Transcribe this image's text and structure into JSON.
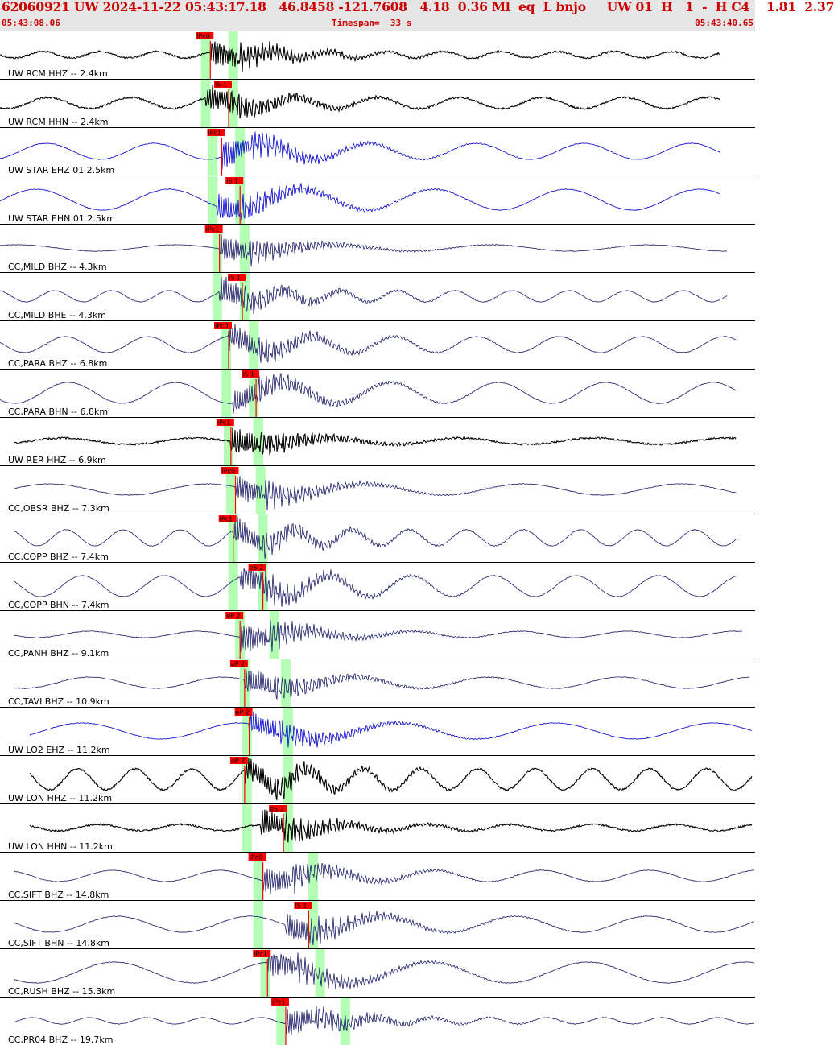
{
  "header": {
    "summary": "62060921 UW 2024-11-22 05:43:17.18   46.8458 -121.7608   4.18  0.36 Ml  eq  L bnjo     UW 01  H   1  -  H C4    1.81  2.37",
    "start_time": "05:43:08.06",
    "timespan": "Timespan=  33 s",
    "end_time": "05:43:40.65"
  },
  "colors": {
    "header_text": "#cc0000",
    "header_bg": "#e6e6e6",
    "pick": "#ff0000",
    "window": "#b3ffb3",
    "trace_blue": "#0000cc",
    "trace_navy": "#1a1a66",
    "trace_black": "#000000"
  },
  "channels": [
    {
      "label": "UW RCM HHZ -- 2.4km",
      "color": "#000000",
      "p": {
        "label": "iPc0",
        "t": 9.2
      },
      "s": null,
      "wins": [
        9.0,
        10.2
      ],
      "wstart": 0.0,
      "wend": 31.5
    },
    {
      "label": "UW RCM HHN -- 2.4km",
      "color": "#000000",
      "p": null,
      "s": {
        "label": "iS 1",
        "t": 10.0
      },
      "wins": [
        9.0,
        10.2
      ],
      "wstart": 0.0,
      "wend": 31.5
    },
    {
      "label": "UW STAR EHZ 01 2.5km",
      "color": "#0000cc",
      "p": {
        "label": "iPc1",
        "t": 9.7
      },
      "s": null,
      "wins": [
        9.3,
        10.5
      ],
      "wstart": 0.0,
      "wend": 31.5
    },
    {
      "label": "UW STAR EHN 01 2.5km",
      "color": "#0000cc",
      "p": null,
      "s": {
        "label": "iS 1",
        "t": 10.5
      },
      "wins": [
        9.3,
        10.5
      ],
      "wstart": 0.0,
      "wend": 31.5
    },
    {
      "label": "CC,MILD BHZ -- 4.3km",
      "color": "#1a1a66",
      "p": {
        "label": "iPc1",
        "t": 9.6
      },
      "s": null,
      "wins": [
        9.5,
        10.7
      ],
      "wstart": 0.0,
      "wend": 31.8
    },
    {
      "label": "CC,MILD BHE -- 4.3km",
      "color": "#1a1a66",
      "p": null,
      "s": {
        "label": "iS 1",
        "t": 10.6
      },
      "wins": [
        9.5,
        10.7
      ],
      "wstart": 0.0,
      "wend": 31.8
    },
    {
      "label": "CC,PARA BHZ -- 6.8km",
      "color": "#1a1a66",
      "p": {
        "label": "iPc0",
        "t": 10.0
      },
      "s": null,
      "wins": [
        9.9,
        11.1
      ],
      "wstart": 0.0,
      "wend": 32.2
    },
    {
      "label": "CC,PARA BHN -- 6.8km",
      "color": "#1a1a66",
      "p": null,
      "s": {
        "label": "iS 1",
        "t": 11.2
      },
      "wins": [
        9.9,
        11.1
      ],
      "wstart": 0.0,
      "wend": 32.2
    },
    {
      "label": "UW RER HHZ -- 6.9km",
      "color": "#000000",
      "p": {
        "label": "iPc1",
        "t": 10.1
      },
      "s": null,
      "wins": [
        10.0,
        11.3
      ],
      "wstart": 0.6,
      "wend": 32.2
    },
    {
      "label": "CC,OBSR BHZ -- 7.3km",
      "color": "#1a1a66",
      "p": {
        "label": "iPc0",
        "t": 10.3
      },
      "s": null,
      "wins": [
        10.1,
        11.4
      ],
      "wstart": 0.6,
      "wend": 32.2
    },
    {
      "label": "CC,COPP BHZ -- 7.4km",
      "color": "#1a1a66",
      "p": {
        "label": "iPc1",
        "t": 10.2
      },
      "s": null,
      "wins": [
        10.2,
        11.5
      ],
      "wstart": 0.6,
      "wend": 32.2
    },
    {
      "label": "CC,COPP BHN -- 7.4km",
      "color": "#1a1a66",
      "p": null,
      "s": {
        "label": "eS 2",
        "t": 11.5
      },
      "wins": [
        10.2,
        11.5
      ],
      "wstart": 0.6,
      "wend": 32.2
    },
    {
      "label": "CC,PANH BHZ -- 9.1km",
      "color": "#1a1a66",
      "p": {
        "label": "eP 2",
        "t": 10.5
      },
      "s": null,
      "wins": [
        10.5,
        12.0
      ],
      "wstart": 0.6,
      "wend": 32.5
    },
    {
      "label": "CC,TAVI BHZ -- 10.9km",
      "color": "#1a1a66",
      "p": {
        "label": "eP 2",
        "t": 10.7
      },
      "s": null,
      "wins": [
        10.7,
        12.5
      ],
      "wstart": 0.6,
      "wend": 32.8
    },
    {
      "label": "UW LO2 EHZ -- 11.2km",
      "color": "#0000cc",
      "p": {
        "label": "eP 2",
        "t": 10.9
      },
      "s": null,
      "wins": [
        10.8,
        12.6
      ],
      "wstart": 1.3,
      "wend": 32.9
    },
    {
      "label": "UW LON HHZ -- 11.2km",
      "color": "#000000",
      "p": {
        "label": "eP 2",
        "t": 10.7
      },
      "s": null,
      "wins": [
        10.8,
        12.6
      ],
      "wstart": 1.3,
      "wend": 32.9
    },
    {
      "label": "UW LON HHN -- 11.2km",
      "color": "#000000",
      "p": null,
      "s": {
        "label": "eS 2",
        "t": 12.4
      },
      "wins": [
        10.8,
        12.6
      ],
      "wstart": 1.3,
      "wend": 32.9
    },
    {
      "label": "CC,SIFT BHZ -- 14.8km",
      "color": "#1a1a66",
      "p": {
        "label": "iPc0",
        "t": 11.5
      },
      "s": null,
      "wins": [
        11.3,
        13.7
      ],
      "wstart": 0.6,
      "wend": 33.0
    },
    {
      "label": "CC,SIFT BHN -- 14.8km",
      "color": "#1a1a66",
      "p": null,
      "s": {
        "label": "iS 1",
        "t": 13.5
      },
      "wins": [
        11.3,
        13.7
      ],
      "wstart": 0.6,
      "wend": 33.0
    },
    {
      "label": "CC,RUSH BHZ -- 15.3km",
      "color": "#1a1a66",
      "p": {
        "label": "iPc1",
        "t": 11.7
      },
      "s": null,
      "wins": [
        11.6,
        14.0
      ],
      "wstart": 0.6,
      "wend": 33.0
    },
    {
      "label": "CC,PR04 BHZ -- 19.7km",
      "color": "#1a1a66",
      "p": {
        "label": "iPc1",
        "t": 12.5
      },
      "s": null,
      "wins": [
        12.3,
        15.1
      ],
      "wstart": 0.6,
      "wend": 33.0
    }
  ]
}
